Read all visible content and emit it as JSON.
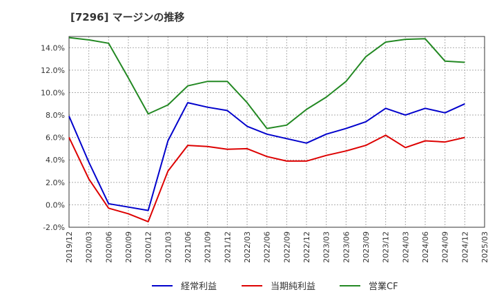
{
  "chart_data": {
    "type": "line",
    "title": "[7296]  マージンの推移",
    "xlabel": "",
    "ylabel": "",
    "x": [
      "2019/12",
      "2020/03",
      "2020/06",
      "2020/09",
      "2020/12",
      "2021/03",
      "2021/06",
      "2021/09",
      "2021/12",
      "2022/03",
      "2022/06",
      "2022/09",
      "2022/12",
      "2023/03",
      "2023/06",
      "2023/09",
      "2023/12",
      "2024/03",
      "2024/06",
      "2024/09",
      "2024/12",
      "2025/03"
    ],
    "ylim": [
      -2.0,
      15.0
    ],
    "yticks": [
      -2.0,
      0.0,
      2.0,
      4.0,
      6.0,
      8.0,
      10.0,
      12.0,
      14.0
    ],
    "ytick_labels": [
      "-2.0%",
      "0.0%",
      "2.0%",
      "4.0%",
      "6.0%",
      "8.0%",
      "10.0%",
      "12.0%",
      "14.0%"
    ],
    "grid": true,
    "legend_position": "bottom",
    "series": [
      {
        "name": "経常利益",
        "color": "#0000cc",
        "values": [
          7.9,
          3.8,
          0.1,
          -0.2,
          -0.5,
          5.7,
          9.1,
          8.7,
          8.4,
          7.0,
          6.3,
          5.9,
          5.5,
          6.3,
          6.8,
          7.4,
          8.6,
          8.0,
          8.6,
          8.2,
          9.0,
          null
        ]
      },
      {
        "name": "当期純利益",
        "color": "#dd0000",
        "values": [
          6.0,
          2.3,
          -0.3,
          -0.8,
          -1.5,
          3.0,
          5.3,
          5.2,
          4.95,
          5.0,
          4.3,
          3.9,
          3.9,
          4.4,
          4.8,
          5.3,
          6.2,
          5.1,
          5.7,
          5.6,
          6.0,
          null
        ]
      },
      {
        "name": "営業CF",
        "color": "#228822",
        "values": [
          14.9,
          14.7,
          14.4,
          11.3,
          8.1,
          8.9,
          10.6,
          11.0,
          11.0,
          9.1,
          6.8,
          7.1,
          8.5,
          9.6,
          11.0,
          13.2,
          14.5,
          14.75,
          14.8,
          12.8,
          12.7,
          null
        ]
      }
    ]
  }
}
